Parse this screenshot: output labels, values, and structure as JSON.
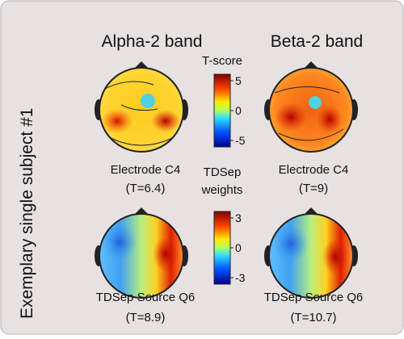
{
  "side_label": "Exemplary single subject #1",
  "columns": [
    "Alpha-2 band",
    "Beta-2 band"
  ],
  "colorbars": [
    {
      "title": [
        "T-score"
      ],
      "ticks": [
        5,
        0,
        -5
      ]
    },
    {
      "title": [
        "TDSep",
        "weights"
      ],
      "ticks": [
        3,
        0,
        -3
      ]
    }
  ],
  "rows": [
    {
      "panels": [
        {
          "label": "Electrode C4",
          "stat": "(T=6.4)"
        },
        {
          "label": "Electrode C4",
          "stat": "(T=9)"
        }
      ]
    },
    {
      "panels": [
        {
          "label": "TDSep Source Q6",
          "stat": "(T=8.9)"
        },
        {
          "label": "TDSep Source Q6",
          "stat": "(T=10.7)"
        }
      ]
    }
  ]
}
